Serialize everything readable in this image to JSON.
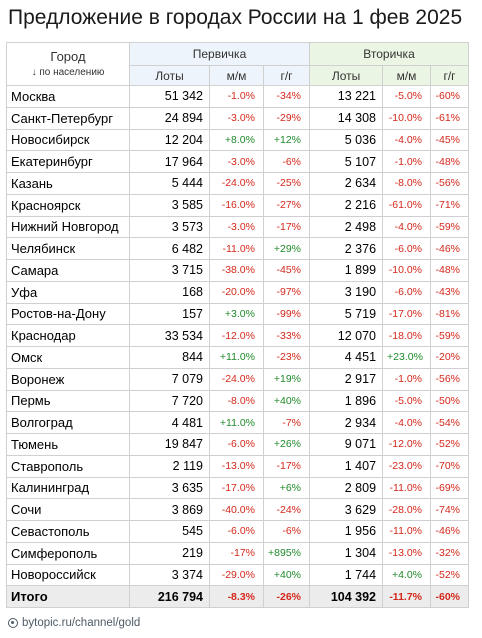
{
  "title": "Предложение в городах России на 1 фев 2025",
  "chart_data": {
    "type": "table",
    "title": "Предложение в городах России на 1 фев 2025",
    "header": {
      "city_label": "Город",
      "city_sublabel": "↓ по населению",
      "groups": [
        "Первичка",
        "Вторичка"
      ],
      "columns": [
        "Лоты",
        "м/м",
        "г/г",
        "Лоты",
        "м/м",
        "г/г"
      ]
    },
    "rows": [
      {
        "city": "Москва",
        "p_lots": "51 342",
        "p_mm": "-1.0%",
        "p_yy": "-34%",
        "s_lots": "13 221",
        "s_mm": "-5.0%",
        "s_yy": "-60%"
      },
      {
        "city": "Санкт-Петербург",
        "p_lots": "24 894",
        "p_mm": "-3.0%",
        "p_yy": "-29%",
        "s_lots": "14 308",
        "s_mm": "-10.0%",
        "s_yy": "-61%"
      },
      {
        "city": "Новосибирск",
        "p_lots": "12 204",
        "p_mm": "+8.0%",
        "p_yy": "+12%",
        "s_lots": "5 036",
        "s_mm": "-4.0%",
        "s_yy": "-45%"
      },
      {
        "city": "Екатеринбург",
        "p_lots": "17 964",
        "p_mm": "-3.0%",
        "p_yy": "-6%",
        "s_lots": "5 107",
        "s_mm": "-1.0%",
        "s_yy": "-48%"
      },
      {
        "city": "Казань",
        "p_lots": "5 444",
        "p_mm": "-24.0%",
        "p_yy": "-25%",
        "s_lots": "2 634",
        "s_mm": "-8.0%",
        "s_yy": "-56%"
      },
      {
        "city": "Красноярск",
        "p_lots": "3 585",
        "p_mm": "-16.0%",
        "p_yy": "-27%",
        "s_lots": "2 216",
        "s_mm": "-61.0%",
        "s_yy": "-71%"
      },
      {
        "city": "Нижний Новгород",
        "p_lots": "3 573",
        "p_mm": "-3.0%",
        "p_yy": "-17%",
        "s_lots": "2 498",
        "s_mm": "-4.0%",
        "s_yy": "-59%"
      },
      {
        "city": "Челябинск",
        "p_lots": "6 482",
        "p_mm": "-11.0%",
        "p_yy": "+29%",
        "s_lots": "2 376",
        "s_mm": "-6.0%",
        "s_yy": "-46%"
      },
      {
        "city": "Самара",
        "p_lots": "3 715",
        "p_mm": "-38.0%",
        "p_yy": "-45%",
        "s_lots": "1 899",
        "s_mm": "-10.0%",
        "s_yy": "-48%"
      },
      {
        "city": "Уфа",
        "p_lots": "168",
        "p_mm": "-20.0%",
        "p_yy": "-97%",
        "s_lots": "3 190",
        "s_mm": "-6.0%",
        "s_yy": "-43%"
      },
      {
        "city": "Ростов-на-Дону",
        "p_lots": "157",
        "p_mm": "+3.0%",
        "p_yy": "-99%",
        "s_lots": "5 719",
        "s_mm": "-17.0%",
        "s_yy": "-81%"
      },
      {
        "city": "Краснодар",
        "p_lots": "33 534",
        "p_mm": "-12.0%",
        "p_yy": "-33%",
        "s_lots": "12 070",
        "s_mm": "-18.0%",
        "s_yy": "-59%"
      },
      {
        "city": "Омск",
        "p_lots": "844",
        "p_mm": "+11.0%",
        "p_yy": "-23%",
        "s_lots": "4 451",
        "s_mm": "+23.0%",
        "s_yy": "-20%"
      },
      {
        "city": "Воронеж",
        "p_lots": "7 079",
        "p_mm": "-24.0%",
        "p_yy": "+19%",
        "s_lots": "2 917",
        "s_mm": "-1.0%",
        "s_yy": "-56%"
      },
      {
        "city": "Пермь",
        "p_lots": "7 720",
        "p_mm": "-8.0%",
        "p_yy": "+40%",
        "s_lots": "1 896",
        "s_mm": "-5.0%",
        "s_yy": "-50%"
      },
      {
        "city": "Волгоград",
        "p_lots": "4 481",
        "p_mm": "+11.0%",
        "p_yy": "-7%",
        "s_lots": "2 934",
        "s_mm": "-4.0%",
        "s_yy": "-54%"
      },
      {
        "city": "Тюмень",
        "p_lots": "19 847",
        "p_mm": "-6.0%",
        "p_yy": "+26%",
        "s_lots": "9 071",
        "s_mm": "-12.0%",
        "s_yy": "-52%"
      },
      {
        "city": "Ставрополь",
        "p_lots": "2 119",
        "p_mm": "-13.0%",
        "p_yy": "-17%",
        "s_lots": "1 407",
        "s_mm": "-23.0%",
        "s_yy": "-70%"
      },
      {
        "city": "Калининград",
        "p_lots": "3 635",
        "p_mm": "-17.0%",
        "p_yy": "+6%",
        "s_lots": "2 809",
        "s_mm": "-11.0%",
        "s_yy": "-69%"
      },
      {
        "city": "Сочи",
        "p_lots": "3 869",
        "p_mm": "-40.0%",
        "p_yy": "-24%",
        "s_lots": "3 629",
        "s_mm": "-28.0%",
        "s_yy": "-74%"
      },
      {
        "city": "Севастополь",
        "p_lots": "545",
        "p_mm": "-6.0%",
        "p_yy": "-6%",
        "s_lots": "1 956",
        "s_mm": "-11.0%",
        "s_yy": "-46%"
      },
      {
        "city": "Симферополь",
        "p_lots": "219",
        "p_mm": "-17%",
        "p_yy": "+895%",
        "s_lots": "1 304",
        "s_mm": "-13.0%",
        "s_yy": "-32%"
      },
      {
        "city": "Новороссийск",
        "p_lots": "3 374",
        "p_mm": "-29.0%",
        "p_yy": "+40%",
        "s_lots": "1 744",
        "s_mm": "+4.0%",
        "s_yy": "-52%"
      }
    ],
    "total": {
      "city": "Итого",
      "p_lots": "216 794",
      "p_mm": "-8.3%",
      "p_yy": "-26%",
      "s_lots": "104 392",
      "s_mm": "-11.7%",
      "s_yy": "-60%"
    }
  },
  "colors": {
    "negative": "#d4281b",
    "positive": "#1f8a2a",
    "primary_header_bg": "#eef4fb",
    "secondary_header_bg": "#eaf5e3"
  },
  "footer": {
    "icon": "link-icon",
    "text": "bytopic.ru/channel/gold"
  }
}
